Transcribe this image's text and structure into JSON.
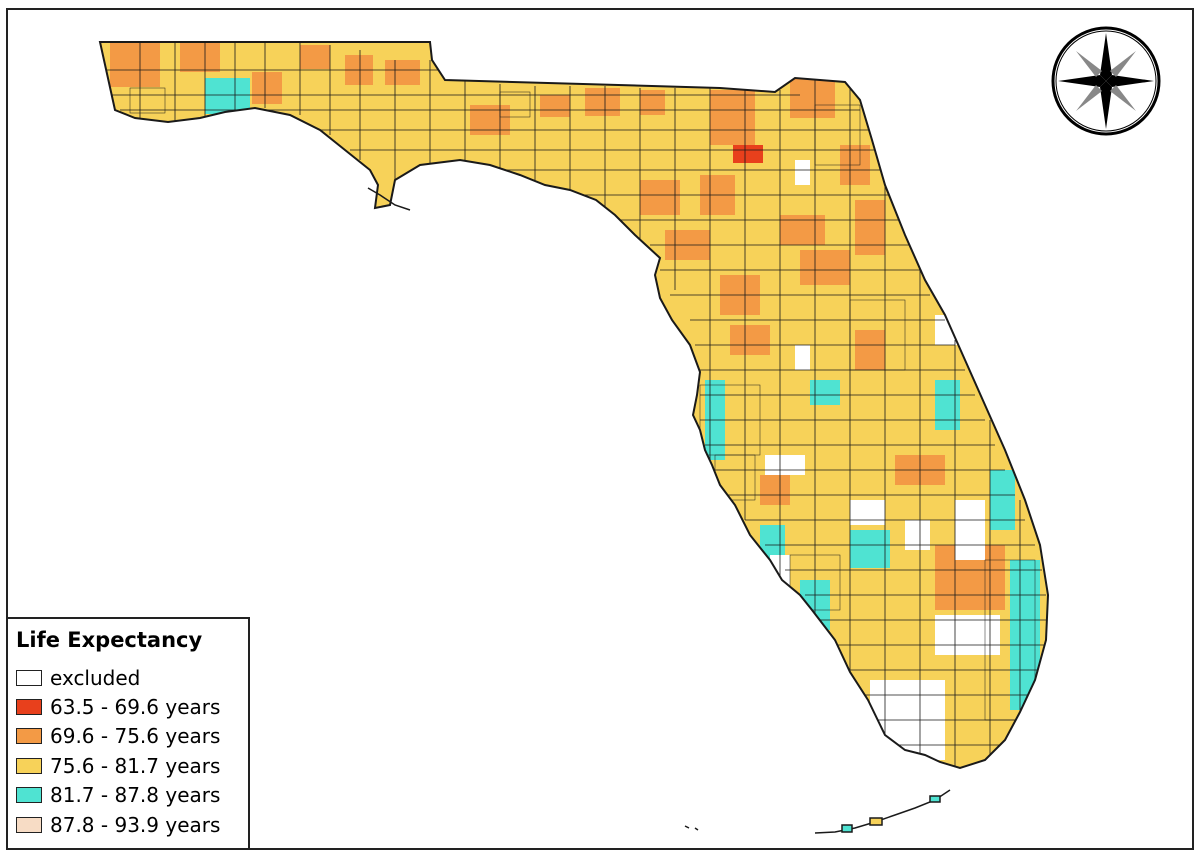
{
  "legend": {
    "title": "Life Expectancy",
    "classes": [
      {
        "label": "excluded",
        "color": "#ffffff"
      },
      {
        "label": "63.5 - 69.6 years",
        "color": "#e8401c"
      },
      {
        "label": "69.6 - 75.6 years",
        "color": "#f39a45"
      },
      {
        "label": "75.6 - 81.7 years",
        "color": "#f7d259"
      },
      {
        "label": "81.7 - 87.8 years",
        "color": "#4fe3d2"
      },
      {
        "label": "87.8 - 93.9 years",
        "color": "#f7dcc5"
      }
    ]
  },
  "compass": {
    "icon": "compass-rose-icon"
  },
  "map": {
    "region": "Florida",
    "boundary_color": "#1a1a1a"
  }
}
